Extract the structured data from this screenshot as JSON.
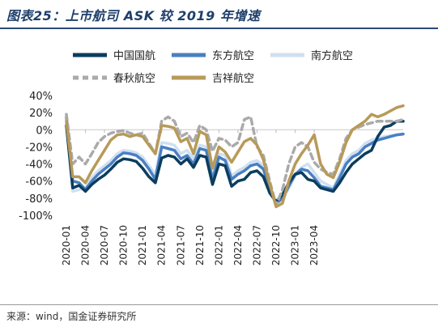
{
  "figure": {
    "title": "图表25：上市航司 ASK 较 2019 年增速",
    "source": "来源：wind，国金证券研究所"
  },
  "chart_data": {
    "type": "line",
    "y_tick_labels": [
      "40%",
      "20%",
      "0%",
      "-20%",
      "-40%",
      "-60%",
      "-80%",
      "-100%"
    ],
    "y_ticks": [
      40,
      20,
      0,
      -20,
      -40,
      -60,
      -80,
      -100
    ],
    "ylim": [
      -100,
      40
    ],
    "x_tick_labels": [
      "2020-01",
      "2020-04",
      "2020-07",
      "2020-10",
      "2021-01",
      "2021-04",
      "2021-07",
      "2021-10",
      "2022-01",
      "2022-04",
      "2022-07",
      "2022-10",
      "2023-01",
      "2023-04"
    ],
    "x_tick_index": [
      0,
      3,
      6,
      9,
      12,
      15,
      18,
      21,
      24,
      27,
      30,
      33,
      36,
      39
    ],
    "series": [
      {
        "name": "中国国航",
        "color": "#0b3d5e",
        "dash": "",
        "values": [
          5,
          -68,
          -65,
          -72,
          -64,
          -58,
          -53,
          -46,
          -38,
          -34,
          -35,
          -37,
          -45,
          -55,
          -62,
          -33,
          -30,
          -32,
          -40,
          -34,
          -44,
          -30,
          -32,
          -64,
          -40,
          -42,
          -66,
          -60,
          -58,
          -50,
          -48,
          -55,
          -74,
          -84,
          -76,
          -62,
          -52,
          -50,
          -58,
          -60,
          -68,
          -70,
          -72,
          -62,
          -50,
          -40,
          -34,
          -28,
          -24,
          -8,
          3,
          5,
          10,
          10
        ]
      },
      {
        "name": "东方航空",
        "color": "#4a7fc1",
        "dash": "",
        "values": [
          15,
          -60,
          -62,
          -70,
          -60,
          -52,
          -46,
          -40,
          -32,
          -27,
          -28,
          -30,
          -36,
          -46,
          -58,
          -20,
          -22,
          -24,
          -34,
          -30,
          -40,
          -22,
          -24,
          -58,
          -32,
          -36,
          -58,
          -52,
          -48,
          -42,
          -40,
          -46,
          -70,
          -86,
          -80,
          -66,
          -52,
          -46,
          -48,
          -56,
          -66,
          -68,
          -70,
          -56,
          -40,
          -32,
          -28,
          -20,
          -16,
          -12,
          -10,
          -8,
          -6,
          -5
        ]
      },
      {
        "name": "南方航空",
        "color": "#cfe0f2",
        "dash": "",
        "values": [
          18,
          -72,
          -70,
          -68,
          -56,
          -48,
          -42,
          -36,
          -28,
          -24,
          -25,
          -27,
          -32,
          -42,
          -52,
          -15,
          -16,
          -18,
          -28,
          -24,
          -34,
          -18,
          -20,
          -52,
          -28,
          -30,
          -54,
          -48,
          -44,
          -38,
          -36,
          -42,
          -68,
          -86,
          -82,
          -68,
          -54,
          -44,
          -40,
          -50,
          -60,
          -64,
          -68,
          -52,
          -36,
          -28,
          -24,
          -16,
          -12,
          -10,
          -8,
          -7,
          -6,
          -5
        ]
      },
      {
        "name": "春秋航空",
        "color": "#aaaaaa",
        "dash": "7,5",
        "values": [
          18,
          -40,
          -32,
          -40,
          -28,
          -15,
          -8,
          -4,
          -2,
          -1,
          -4,
          -6,
          -4,
          -16,
          -28,
          10,
          15,
          10,
          -8,
          -4,
          -15,
          5,
          0,
          -25,
          -10,
          -12,
          -20,
          -15,
          12,
          15,
          -20,
          -30,
          -60,
          -88,
          -70,
          -40,
          -20,
          -15,
          -20,
          -38,
          -46,
          -50,
          -52,
          -34,
          -10,
          0,
          3,
          6,
          8,
          10,
          10,
          10,
          10,
          12
        ]
      },
      {
        "name": "吉祥航空",
        "color": "#b79a5a",
        "dash": "",
        "values": [
          10,
          -55,
          -55,
          -62,
          -48,
          -36,
          -24,
          -12,
          -6,
          -5,
          -8,
          -6,
          -8,
          -18,
          -28,
          5,
          4,
          2,
          -14,
          -10,
          -28,
          -2,
          -6,
          -45,
          -20,
          -26,
          -38,
          -26,
          -14,
          -10,
          -18,
          -35,
          -64,
          -90,
          -86,
          -60,
          -40,
          -28,
          -18,
          -6,
          -40,
          -52,
          -56,
          -38,
          -15,
          0,
          5,
          10,
          18,
          15,
          18,
          22,
          26,
          28
        ]
      }
    ]
  }
}
